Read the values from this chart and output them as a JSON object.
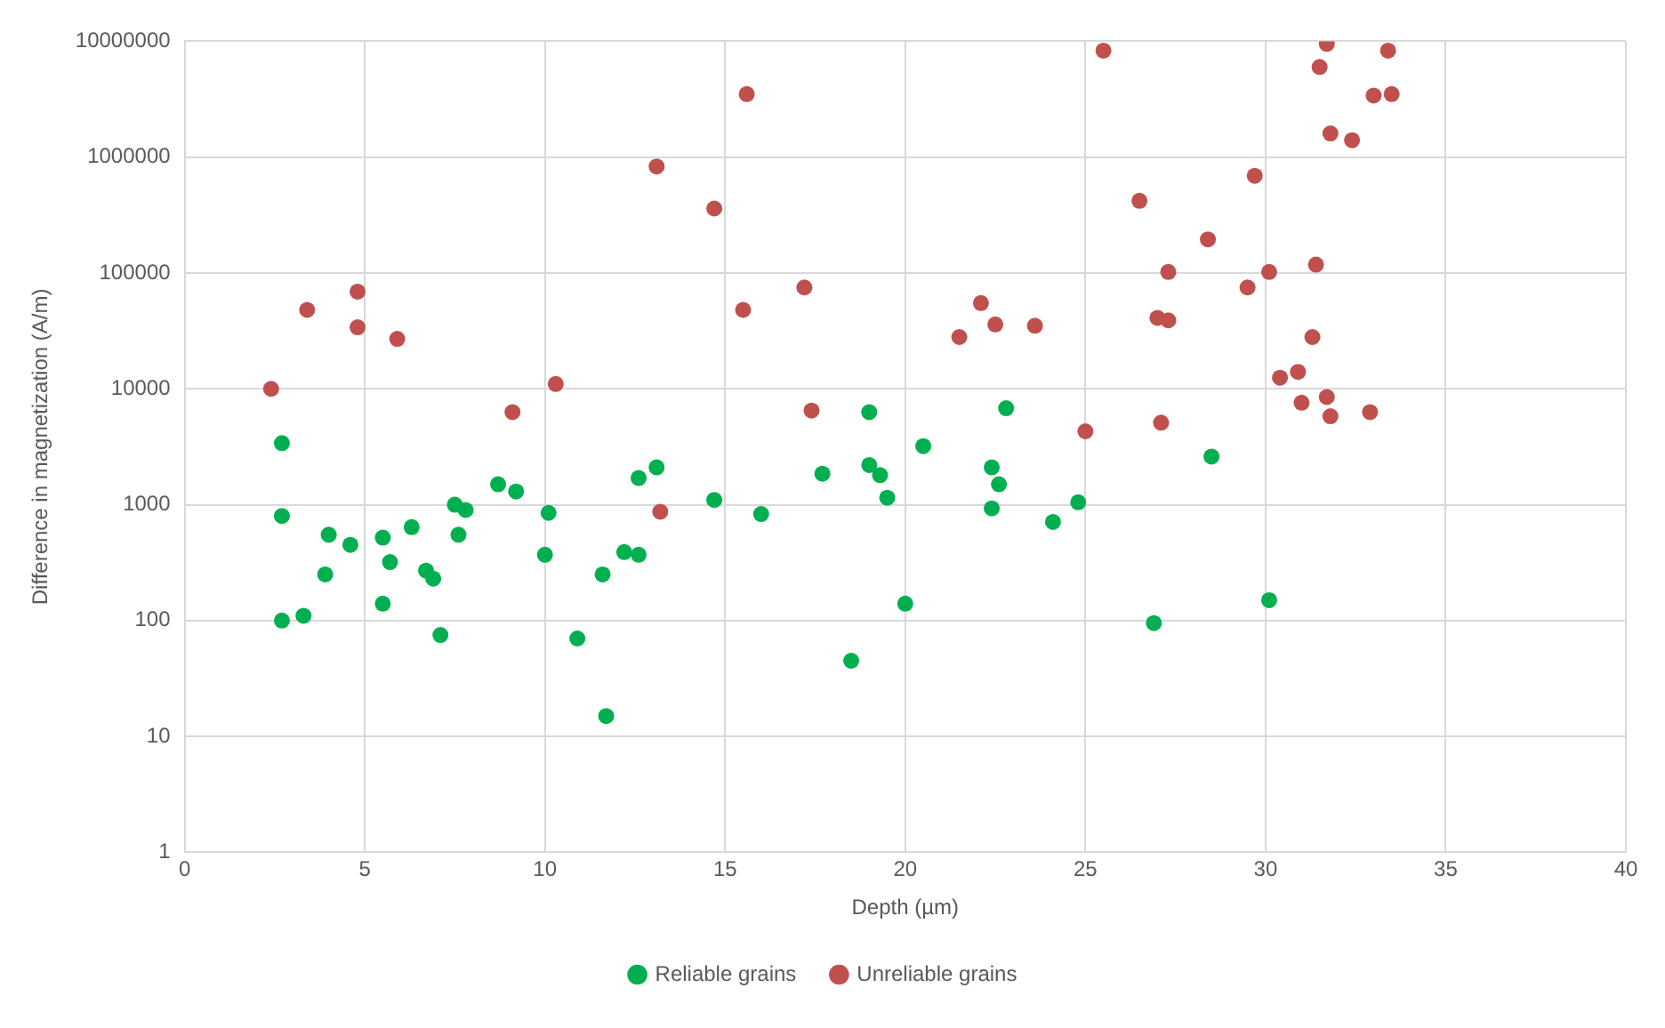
{
  "chart_data": {
    "type": "scatter",
    "xlabel": "Depth (µm)",
    "ylabel": "Difference in magnetization (A/m)",
    "log": "y",
    "xlim": [
      0,
      40
    ],
    "xticks": [
      0,
      5,
      10,
      15,
      20,
      25,
      30,
      35,
      40
    ],
    "ylim": [
      1,
      10000000
    ],
    "yticks": [
      1,
      10,
      100,
      1000,
      10000,
      100000,
      1000000,
      10000000
    ],
    "grid": true,
    "legend": "bottom",
    "marker": "circle",
    "series": [
      {
        "name": "Reliable grains",
        "color": "#00b050",
        "x": [
          2.7,
          2.7,
          2.7,
          3.3,
          4.0,
          3.9,
          4.6,
          5.5,
          5.7,
          5.5,
          6.3,
          6.7,
          6.9,
          7.1,
          7.5,
          7.8,
          7.6,
          8.7,
          9.2,
          10.1,
          10.0,
          10.9,
          11.7,
          11.6,
          12.2,
          12.6,
          12.6,
          13.1,
          14.7,
          16.0,
          17.7,
          19.0,
          19.0,
          19.3,
          19.5,
          18.5,
          20.0,
          22.8,
          20.5,
          22.4,
          22.6,
          22.4,
          24.1,
          24.8,
          28.5,
          26.9,
          30.1
        ],
        "values": [
          3400,
          800,
          100,
          110,
          550,
          250,
          450,
          520,
          320,
          140,
          640,
          270,
          230,
          75,
          1000,
          900,
          550,
          1500,
          1300,
          850,
          370,
          70,
          15,
          250,
          390,
          370,
          1700,
          2100,
          1100,
          830,
          1850,
          6300,
          2200,
          1800,
          1150,
          45,
          140,
          6800,
          3200,
          2100,
          1500,
          930,
          710,
          1050,
          2600,
          95,
          150
        ]
      },
      {
        "name": "Unreliable grains",
        "color": "#c0504d",
        "x": [
          15.6,
          13.1,
          14.7,
          4.8,
          3.4,
          4.8,
          5.9,
          15.5,
          17.2,
          2.4,
          10.3,
          9.1,
          17.4,
          13.2,
          25.5,
          31.7,
          33.4,
          31.5,
          33.0,
          33.5,
          31.8,
          32.4,
          29.7,
          26.5,
          28.4,
          27.3,
          30.1,
          31.4,
          29.5,
          22.1,
          21.5,
          22.5,
          23.6,
          27.0,
          27.3,
          31.3,
          30.4,
          30.9,
          31.0,
          31.7,
          31.8,
          32.9,
          27.1,
          25.0
        ],
        "values": [
          3500000,
          830000,
          360000,
          69000,
          48000,
          34000,
          27000,
          48000,
          75000,
          10000,
          11000,
          6300,
          6500,
          870,
          8300000,
          9500000,
          8300000,
          6000000,
          3400000,
          3500000,
          1600000,
          1400000,
          690000,
          420000,
          195000,
          102000,
          102000,
          118000,
          75000,
          55000,
          28000,
          36000,
          35000,
          41000,
          39000,
          28000,
          12500,
          14000,
          7600,
          8500,
          5800,
          6300,
          5100,
          4300
        ]
      }
    ]
  }
}
